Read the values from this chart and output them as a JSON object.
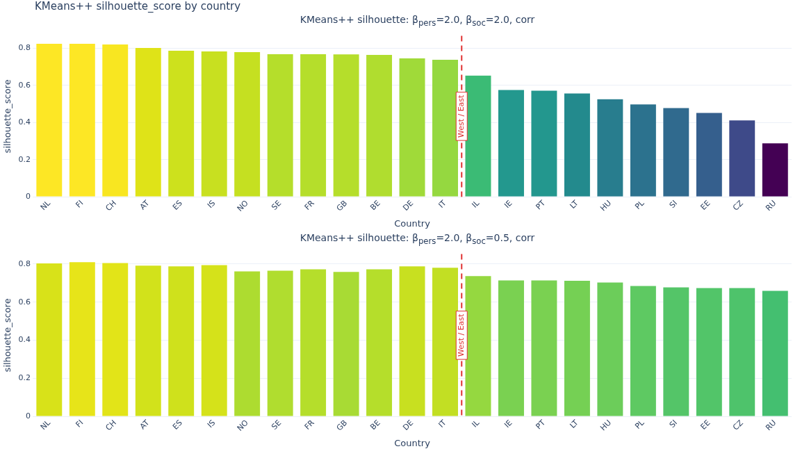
{
  "chart_data": [
    {
      "type": "bar",
      "title": "KMeans++ silhouette_score by country",
      "subtitle": "KMeans++ silhouette: β$_{pers}$=2.0, β$_{soc}$=2.0, corr",
      "xlabel": "Country",
      "ylabel": "silhouette_score",
      "categories": [
        "NL",
        "FI",
        "CH",
        "AT",
        "ES",
        "IS",
        "NO",
        "SE",
        "FR",
        "GB",
        "BE",
        "DE",
        "IT",
        "IL",
        "IE",
        "PT",
        "LT",
        "HU",
        "PL",
        "SI",
        "EE",
        "CZ",
        "RU"
      ],
      "values": [
        0.826,
        0.826,
        0.822,
        0.804,
        0.789,
        0.785,
        0.781,
        0.77,
        0.77,
        0.769,
        0.766,
        0.748,
        0.74,
        0.655,
        0.577,
        0.573,
        0.558,
        0.528,
        0.499,
        0.48,
        0.454,
        0.413,
        0.29
      ],
      "colors": [
        "#fde725",
        "#fde725",
        "#f8e621",
        "#dfe318",
        "#cde11d",
        "#c8e020",
        "#c5e021",
        "#b5de2b",
        "#b5de2b",
        "#b5de2b",
        "#b0dd2f",
        "#a0da39",
        "#95d840",
        "#3bbb75",
        "#23988e",
        "#23978e",
        "#238a8d",
        "#287d8e",
        "#2c728e",
        "#306a8e",
        "#355f8d",
        "#3e4a89",
        "#440154"
      ],
      "ylim": [
        0,
        0.867
      ],
      "yticks": [
        0,
        0.2,
        0.4,
        0.6,
        0.8
      ],
      "grid": "y",
      "ref_lines": [
        {
          "axis": "x",
          "value": "IL",
          "label": "West / East",
          "color": "#e03131",
          "line_style": "dashed"
        }
      ]
    },
    {
      "type": "bar",
      "title": "KMeans++ silhouette: β$_{pers}$=2.0, β$_{soc}$=0.5, corr",
      "xlabel": "Country",
      "ylabel": "silhouette_score",
      "categories": [
        "NL",
        "FI",
        "CH",
        "AT",
        "ES",
        "IS",
        "NO",
        "SE",
        "FR",
        "GB",
        "BE",
        "DE",
        "IT",
        "IL",
        "IE",
        "PT",
        "LT",
        "HU",
        "PL",
        "SI",
        "EE",
        "CZ",
        "RU"
      ],
      "values": [
        0.805,
        0.811,
        0.807,
        0.793,
        0.789,
        0.796,
        0.763,
        0.767,
        0.774,
        0.76,
        0.774,
        0.789,
        0.782,
        0.738,
        0.716,
        0.716,
        0.714,
        0.705,
        0.686,
        0.679,
        0.675,
        0.675,
        0.661
      ],
      "colors": [
        "#d8e219",
        "#e7e419",
        "#e2e418",
        "#d2e21b",
        "#cfe11c",
        "#d5e21a",
        "#addc30",
        "#b0dd2f",
        "#b5de2b",
        "#a8db34",
        "#b5de2b",
        "#c8e020",
        "#c2df23",
        "#95d840",
        "#7ad151",
        "#7ad151",
        "#75d054",
        "#6ccd5a",
        "#5ec962",
        "#54c568",
        "#52c569",
        "#4ec36b",
        "#44bf70"
      ],
      "ylim": [
        0,
        0.852
      ],
      "yticks": [
        0,
        0.2,
        0.4,
        0.6,
        0.8
      ],
      "grid": "y",
      "ref_lines": [
        {
          "axis": "x",
          "value": "IL",
          "label": "West / East",
          "color": "#e03131",
          "line_style": "dashed"
        }
      ]
    }
  ]
}
